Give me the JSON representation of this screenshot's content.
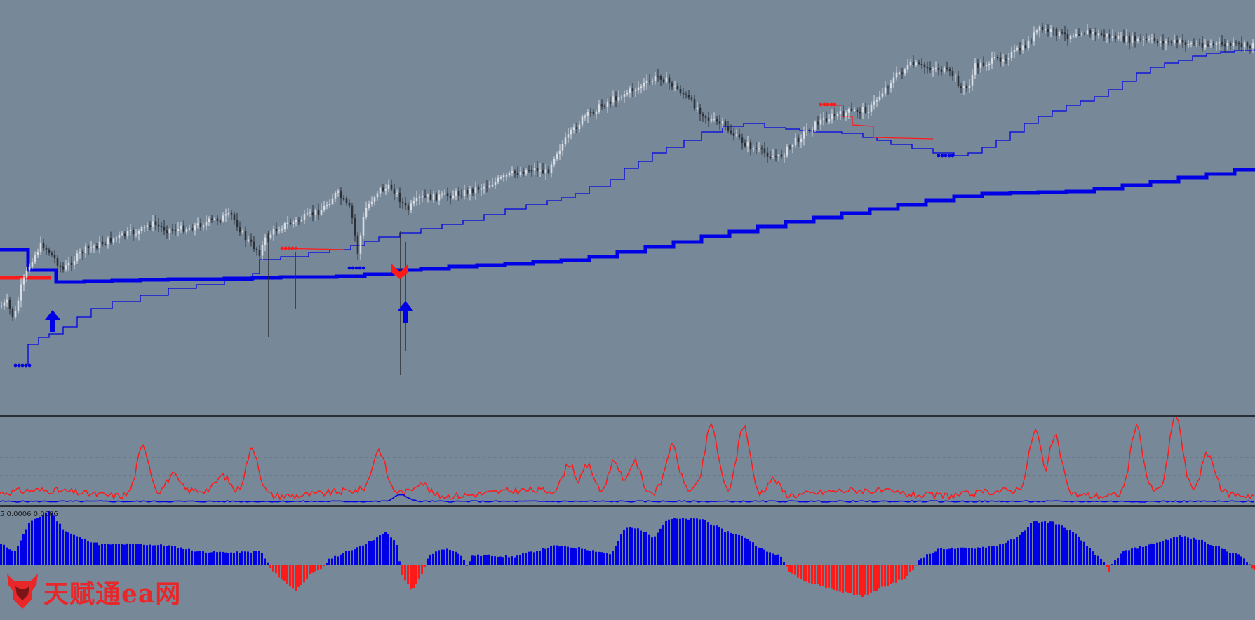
{
  "colors": {
    "background": "#778899",
    "candle_bull": "#d8dce3",
    "candle_bear": "#2b2f36",
    "trend_blue": "#0000e6",
    "signal_red": "#ff1a1a",
    "separator": "#2a2f36",
    "dash": "#5e6a78",
    "watermark_red": "#e8272b"
  },
  "subwindow_label": "5 0.0006 0.0006",
  "watermark": {
    "text": "天赋通ea网",
    "icon": "bull-head-logo-icon"
  },
  "chart_data": [
    {
      "type": "candlestick",
      "panel": "price",
      "title": "",
      "grid": false,
      "legend": "none",
      "trend_path": [
        [
          0,
          356
        ],
        [
          63,
          402
        ],
        [
          360,
          396
        ],
        [
          470,
          394
        ],
        [
          500,
          395
        ],
        [
          510,
          392
        ],
        [
          560,
          385
        ],
        [
          820,
          370
        ],
        [
          1130,
          314
        ],
        [
          1380,
          277
        ],
        [
          1540,
          272
        ],
        [
          1785,
          239
        ]
      ],
      "price_path": [
        [
          0,
          437
        ],
        [
          10,
          432
        ],
        [
          20,
          455
        ],
        [
          30,
          410
        ],
        [
          45,
          370
        ],
        [
          60,
          348
        ],
        [
          75,
          365
        ],
        [
          90,
          385
        ],
        [
          100,
          375
        ],
        [
          120,
          357
        ],
        [
          150,
          345
        ],
        [
          180,
          334
        ],
        [
          200,
          330
        ],
        [
          215,
          318
        ],
        [
          240,
          328
        ],
        [
          270,
          325
        ],
        [
          300,
          315
        ],
        [
          330,
          307
        ],
        [
          350,
          340
        ],
        [
          370,
          360
        ],
        [
          380,
          338
        ],
        [
          400,
          323
        ],
        [
          430,
          312
        ],
        [
          460,
          298
        ],
        [
          480,
          275
        ],
        [
          500,
          300
        ],
        [
          510,
          360
        ],
        [
          520,
          300
        ],
        [
          540,
          270
        ],
        [
          560,
          268
        ],
        [
          580,
          300
        ],
        [
          600,
          282
        ],
        [
          630,
          280
        ],
        [
          660,
          275
        ],
        [
          700,
          262
        ],
        [
          730,
          248
        ],
        [
          760,
          240
        ],
        [
          780,
          246
        ],
        [
          790,
          222
        ],
        [
          810,
          195
        ],
        [
          830,
          170
        ],
        [
          850,
          155
        ],
        [
          880,
          138
        ],
        [
          920,
          120
        ],
        [
          940,
          108
        ],
        [
          970,
          130
        ],
        [
          990,
          150
        ],
        [
          1010,
          170
        ],
        [
          1030,
          178
        ],
        [
          1050,
          196
        ],
        [
          1070,
          210
        ],
        [
          1090,
          218
        ],
        [
          1110,
          225
        ],
        [
          1130,
          205
        ],
        [
          1150,
          186
        ],
        [
          1170,
          172
        ],
        [
          1190,
          165
        ],
        [
          1210,
          160
        ],
        [
          1240,
          155
        ],
        [
          1260,
          128
        ],
        [
          1280,
          105
        ],
        [
          1300,
          92
        ],
        [
          1320,
          96
        ],
        [
          1340,
          98
        ],
        [
          1360,
          108
        ],
        [
          1370,
          126
        ],
        [
          1380,
          125
        ],
        [
          1390,
          95
        ],
        [
          1420,
          85
        ],
        [
          1440,
          78
        ],
        [
          1460,
          68
        ],
        [
          1480,
          42
        ],
        [
          1500,
          45
        ],
        [
          1520,
          52
        ],
        [
          1540,
          44
        ],
        [
          1560,
          48
        ],
        [
          1580,
          52
        ],
        [
          1600,
          56
        ],
        [
          1640,
          58
        ],
        [
          1700,
          62
        ],
        [
          1789,
          66
        ]
      ],
      "levels_blue": [
        [
          24,
          521
        ],
        [
          40,
          491
        ],
        [
          55,
          481
        ],
        [
          70,
          476
        ],
        [
          90,
          466
        ],
        [
          110,
          452
        ],
        [
          130,
          440
        ],
        [
          160,
          430
        ],
        [
          200,
          421
        ],
        [
          240,
          411
        ],
        [
          280,
          406
        ],
        [
          320,
          400
        ],
        [
          360,
          390
        ],
        [
          370,
          370
        ],
        [
          400,
          366
        ],
        [
          440,
          360
        ],
        [
          470,
          356
        ],
        [
          500,
          350
        ],
        [
          520,
          344
        ],
        [
          540,
          338
        ],
        [
          570,
          332
        ],
        [
          600,
          326
        ],
        [
          630,
          320
        ],
        [
          660,
          314
        ],
        [
          690,
          306
        ],
        [
          720,
          298
        ],
        [
          750,
          292
        ],
        [
          780,
          286
        ],
        [
          800,
          282
        ],
        [
          820,
          276
        ],
        [
          840,
          266
        ],
        [
          870,
          256
        ],
        [
          890,
          240
        ],
        [
          910,
          230
        ],
        [
          930,
          218
        ],
        [
          950,
          210
        ],
        [
          975,
          200
        ],
        [
          1000,
          188
        ],
        [
          1030,
          180
        ],
        [
          1060,
          176
        ],
        [
          1090,
          182
        ],
        [
          1120,
          184
        ],
        [
          1140,
          186
        ],
        [
          1160,
          188
        ],
        [
          1200,
          190
        ],
        [
          1230,
          196
        ],
        [
          1250,
          200
        ],
        [
          1270,
          206
        ],
        [
          1300,
          212
        ],
        [
          1330,
          218
        ],
        [
          1360,
          222
        ],
        [
          1380,
          218
        ],
        [
          1400,
          210
        ],
        [
          1420,
          200
        ],
        [
          1440,
          188
        ],
        [
          1460,
          176
        ],
        [
          1480,
          166
        ],
        [
          1500,
          158
        ],
        [
          1520,
          150
        ],
        [
          1540,
          144
        ],
        [
          1560,
          138
        ],
        [
          1580,
          128
        ],
        [
          1600,
          116
        ],
        [
          1620,
          104
        ],
        [
          1640,
          96
        ],
        [
          1660,
          90
        ],
        [
          1680,
          86
        ],
        [
          1700,
          80
        ],
        [
          1720,
          76
        ],
        [
          1740,
          74
        ],
        [
          1760,
          72
        ],
        [
          1789,
          70
        ]
      ],
      "markers": [
        {
          "kind": "up-arrow",
          "x": 75,
          "y": 458,
          "color": "#0000e6"
        },
        {
          "kind": "down-arrow",
          "x": 570,
          "y": 384,
          "color": "#ff1a1a"
        },
        {
          "kind": "up-arrow",
          "x": 578,
          "y": 445,
          "color": "#0000e6"
        }
      ]
    },
    {
      "type": "line",
      "panel": "oscillator",
      "title": "",
      "grid": false,
      "legend": "none",
      "series": [
        {
          "color": "#ff1a1a",
          "peaks": [
            [
              204,
              643
            ],
            [
              246,
              688
            ],
            [
              318,
              690
            ],
            [
              360,
              648
            ],
            [
              540,
              654
            ],
            [
              600,
              694
            ],
            [
              812,
              670
            ],
            [
              838,
              670
            ],
            [
              876,
              662
            ],
            [
              904,
              664
            ],
            [
              958,
              648
            ],
            [
              1014,
              618
            ],
            [
              1060,
              614
            ],
            [
              1102,
              688
            ],
            [
              1476,
              626
            ],
            [
              1504,
              632
            ],
            [
              1620,
              618
            ],
            [
              1676,
              604
            ],
            [
              1722,
              658
            ]
          ]
        },
        {
          "color": "#0000e6",
          "peaks": [
            [
              572,
              692
            ]
          ]
        }
      ]
    },
    {
      "type": "bar",
      "panel": "histogram",
      "title": "",
      "grid": false,
      "legend": "none",
      "zero_line": true
    }
  ]
}
